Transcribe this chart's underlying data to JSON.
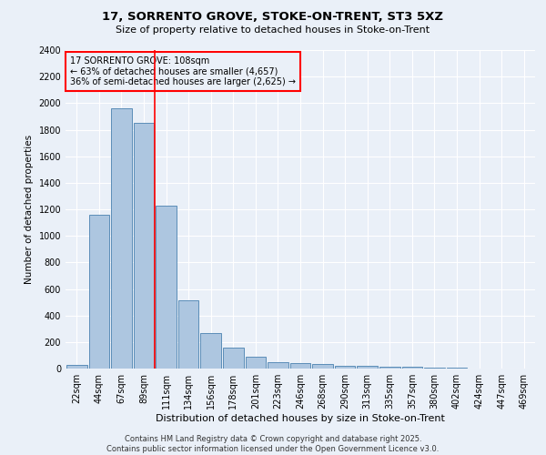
{
  "title": "17, SORRENTO GROVE, STOKE-ON-TRENT, ST3 5XZ",
  "subtitle": "Size of property relative to detached houses in Stoke-on-Trent",
  "xlabel": "Distribution of detached houses by size in Stoke-on-Trent",
  "ylabel": "Number of detached properties",
  "categories": [
    "22sqm",
    "44sqm",
    "67sqm",
    "89sqm",
    "111sqm",
    "134sqm",
    "156sqm",
    "178sqm",
    "201sqm",
    "223sqm",
    "246sqm",
    "268sqm",
    "290sqm",
    "313sqm",
    "335sqm",
    "357sqm",
    "380sqm",
    "402sqm",
    "424sqm",
    "447sqm",
    "469sqm"
  ],
  "values": [
    25,
    1160,
    1960,
    1850,
    1230,
    515,
    270,
    155,
    90,
    48,
    40,
    35,
    22,
    18,
    15,
    12,
    8,
    5,
    3,
    2,
    1
  ],
  "bar_color": "#adc6e0",
  "bar_edge_color": "#5b8db8",
  "vline_x": 3.5,
  "vline_color": "red",
  "ylim": [
    0,
    2400
  ],
  "yticks": [
    0,
    200,
    400,
    600,
    800,
    1000,
    1200,
    1400,
    1600,
    1800,
    2000,
    2200,
    2400
  ],
  "annotation_title": "17 SORRENTO GROVE: 108sqm",
  "annotation_line1": "← 63% of detached houses are smaller (4,657)",
  "annotation_line2": "36% of semi-detached houses are larger (2,625) →",
  "annotation_box_color": "red",
  "footer_line1": "Contains HM Land Registry data © Crown copyright and database right 2025.",
  "footer_line2": "Contains public sector information licensed under the Open Government Licence v3.0.",
  "background_color": "#eaf0f8",
  "plot_background_color": "#eaf0f8",
  "grid_color": "#ffffff",
  "title_fontsize": 9.5,
  "subtitle_fontsize": 8,
  "ylabel_fontsize": 7.5,
  "xlabel_fontsize": 8,
  "tick_fontsize": 7,
  "ann_fontsize": 7,
  "footer_fontsize": 6
}
